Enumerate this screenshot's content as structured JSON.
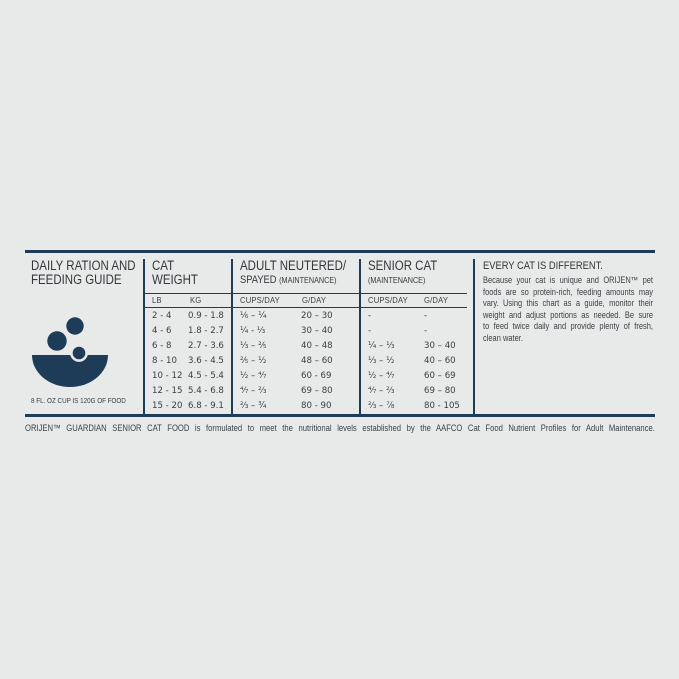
{
  "colors": {
    "background": "#e8e9e9",
    "navy": "#1e3b58",
    "text": "#3a3d42"
  },
  "left": {
    "title1": "DAILY RATION AND",
    "title2": "FEEDING GUIDE",
    "cup_note": "8 FL. OZ CUP IS 120G OF FOOD"
  },
  "weight": {
    "h1": "CAT",
    "h2": "WEIGHT",
    "c1": "LB",
    "c2": "KG",
    "rows": [
      [
        "2 - 4",
        "0.9 - 1.8"
      ],
      [
        "4 - 6",
        "1.8 - 2.7"
      ],
      [
        "6 - 8",
        "2.7 - 3.6"
      ],
      [
        "8 - 10",
        "3.6 - 4.5"
      ],
      [
        "10 - 12",
        "4.5 - 5.4"
      ],
      [
        "12 - 15",
        "5.4 - 6.8"
      ],
      [
        "15 - 20",
        "6.8 - 9.1"
      ]
    ]
  },
  "adult": {
    "h1": "ADULT NEUTERED/",
    "h2": "SPAYED",
    "h2b": "(MAINTENANCE)",
    "c1": "CUPS/DAY",
    "c2": "G/DAY",
    "rows": [
      [
        "⅙ – ¼",
        "20 – 30"
      ],
      [
        "¼ - ⅓",
        "30 – 40"
      ],
      [
        "⅓ – ⅖",
        "40 – 48"
      ],
      [
        "⅖ – ½",
        "48 – 60"
      ],
      [
        "½ – ⁴⁄₇",
        "60 - 69"
      ],
      [
        "⁴⁄₇ – ⅔",
        "69 – 80"
      ],
      [
        "⅔ – ¾",
        "80 - 90"
      ]
    ]
  },
  "senior": {
    "h1": "SENIOR CAT",
    "h2b": "(MAINTENANCE)",
    "c1": "CUPS/DAY",
    "c2": "G/DAY",
    "rows": [
      [
        "-",
        "-"
      ],
      [
        "-",
        "-"
      ],
      [
        "¼ – ⅓",
        "30 – 40"
      ],
      [
        "⅓ – ½",
        "40 – 60"
      ],
      [
        "½ – ⁴⁄₇",
        "60 – 69"
      ],
      [
        "⁴⁄₇ – ⅔",
        "69 – 80"
      ],
      [
        "⅔ – ⅞",
        "80 - 105"
      ]
    ]
  },
  "info": {
    "heading": "EVERY CAT IS DIFFERENT.",
    "lines": [
      "Because your cat is unique and ORIJEN™ pet",
      "foods are so protein-rich, feeding amounts may",
      "vary. Using this chart as a guide, monitor their",
      "weight and adjust portions as needed. Be sure",
      "to feed twice daily and provide plenty of fresh,",
      "clean water."
    ]
  },
  "footnote": "ORIJEN™ GUARDIAN SENIOR CAT FOOD is formulated to meet the nutritional levels established by the AAFCO Cat Food Nutrient Profiles for Adult Maintenance."
}
